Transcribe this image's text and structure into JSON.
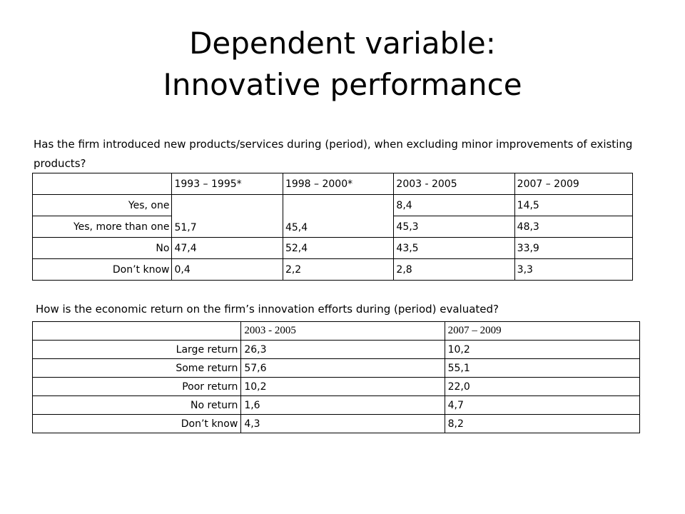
{
  "title": {
    "line1": "Dependent variable:",
    "line2": "Innovative performance"
  },
  "question1": "Has the firm introduced new products/services during (period), when excluding minor improvements of existing products?",
  "table1": {
    "headers": [
      "",
      "1993 – 1995*",
      "1998 – 2000*",
      "2003 - 2005",
      "2007 – 2009"
    ],
    "merged_values": [
      "51,7",
      "45,4"
    ],
    "rows": [
      {
        "label": "Yes, one",
        "values": [
          "8,4",
          "14,5"
        ]
      },
      {
        "label": "Yes, more than one",
        "values": [
          "45,3",
          "48,3"
        ]
      },
      {
        "label": "No",
        "values": [
          "47,4",
          "52,4",
          "43,5",
          "33,9"
        ]
      },
      {
        "label": "Don’t know",
        "values": [
          "0,4",
          "2,2",
          "2,8",
          "3,3"
        ]
      }
    ]
  },
  "question2": "How is the economic return on the firm’s innovation efforts during (period) evaluated?",
  "table2": {
    "headers": [
      "",
      "2003 - 2005",
      "2007 – 2009"
    ],
    "rows": [
      {
        "label": "Large return",
        "values": [
          "26,3",
          "10,2"
        ]
      },
      {
        "label": "Some return",
        "values": [
          "57,6",
          "55,1"
        ]
      },
      {
        "label": "Poor return",
        "values": [
          "10,2",
          "22,0"
        ]
      },
      {
        "label": "No return",
        "values": [
          "1,6",
          "4,7"
        ]
      },
      {
        "label": "Don’t know",
        "values": [
          "4,3",
          "8,2"
        ]
      }
    ]
  }
}
